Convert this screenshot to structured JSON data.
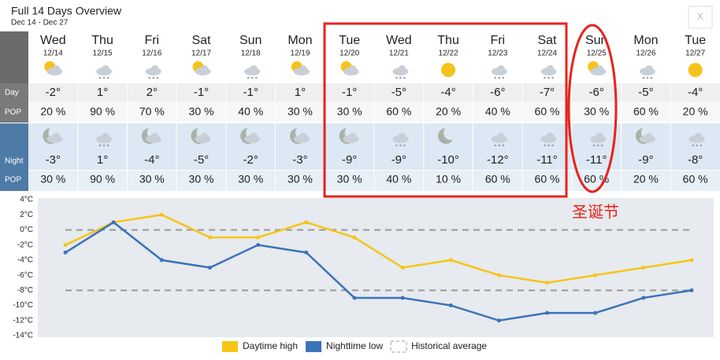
{
  "header": {
    "title": "Full 14 Days Overview",
    "subtitle": "Dec 14 - Dec 27",
    "close": "X"
  },
  "table": {
    "row_labels": [
      "Day",
      "POP",
      "Night",
      "POP"
    ],
    "days": [
      {
        "name": "Wed",
        "date": "12/14"
      },
      {
        "name": "Thu",
        "date": "12/15"
      },
      {
        "name": "Fri",
        "date": "12/16"
      },
      {
        "name": "Sat",
        "date": "12/17"
      },
      {
        "name": "Sun",
        "date": "12/18"
      },
      {
        "name": "Mon",
        "date": "12/19"
      },
      {
        "name": "Tue",
        "date": "12/20"
      },
      {
        "name": "Wed",
        "date": "12/21"
      },
      {
        "name": "Thu",
        "date": "12/22"
      },
      {
        "name": "Fri",
        "date": "12/23"
      },
      {
        "name": "Sat",
        "date": "12/24"
      },
      {
        "name": "Sun",
        "date": "12/25"
      },
      {
        "name": "Mon",
        "date": "12/26"
      },
      {
        "name": "Tue",
        "date": "12/27"
      }
    ],
    "day_temps": [
      "-2°",
      "1°",
      "2°",
      "-1°",
      "-1°",
      "1°",
      "-1°",
      "-5°",
      "-4°",
      "-6°",
      "-7°",
      "-6°",
      "-5°",
      "-4°"
    ],
    "day_pop": [
      "20 %",
      "90 %",
      "70 %",
      "30 %",
      "40 %",
      "30 %",
      "30 %",
      "60 %",
      "20 %",
      "40 %",
      "60 %",
      "30 %",
      "60 %",
      "20 %"
    ],
    "night_temps": [
      "-3°",
      "1°",
      "-4°",
      "-5°",
      "-2°",
      "-3°",
      "-9°",
      "-9°",
      "-10°",
      "-12°",
      "-11°",
      "-11°",
      "-9°",
      "-8°"
    ],
    "night_pop": [
      "30 %",
      "90 %",
      "30 %",
      "30 %",
      "30 %",
      "30 %",
      "30 %",
      "40 %",
      "10 %",
      "60 %",
      "60 %",
      "60 %",
      "20 %",
      "60 %"
    ]
  },
  "annotation": "圣诞节",
  "chart_data": {
    "type": "line",
    "categories": [
      null,
      null,
      null,
      null,
      null,
      null,
      null,
      null,
      null,
      null,
      null,
      null,
      null,
      null
    ],
    "series": [
      {
        "name": "Daytime high",
        "color": "#f5c518",
        "values": [
          -2,
          1,
          2,
          -1,
          -1,
          1,
          -1,
          -5,
          -4,
          -6,
          -7,
          -6,
          -5,
          -4
        ]
      },
      {
        "name": "Nighttime low",
        "color": "#3b73b9",
        "values": [
          -3,
          1,
          -4,
          -5,
          -2,
          -3,
          -9,
          -9,
          -10,
          -12,
          -11,
          -11,
          -9,
          -8
        ]
      }
    ],
    "historical_average": {
      "name": "Historical average",
      "color": "#999999",
      "values": [
        0,
        -8
      ]
    },
    "ylim": [
      -14,
      4
    ],
    "yticks": [
      {
        "value": -14,
        "label": "-14°C"
      },
      {
        "value": -12,
        "label": "-12°C"
      },
      {
        "value": -10,
        "label": "-10°C"
      },
      {
        "value": -8,
        "label": "-8°C"
      },
      {
        "value": -6,
        "label": "-6°C"
      },
      {
        "value": -4,
        "label": "-4°C"
      },
      {
        "value": -2,
        "label": "-2°C"
      },
      {
        "value": 0,
        "label": "0°C"
      },
      {
        "value": 2,
        "label": "2°C"
      },
      {
        "value": 4,
        "label": "4°C"
      }
    ],
    "grid": false
  }
}
